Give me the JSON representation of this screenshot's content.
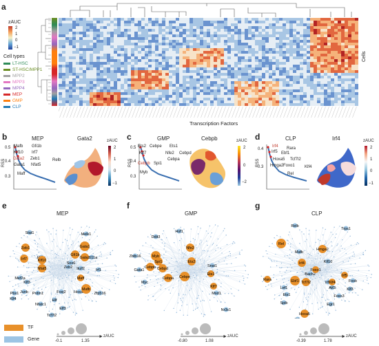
{
  "panel_a": {
    "label": "a",
    "zauc_title": "zAUC",
    "scale_ticks": [
      "2",
      "1",
      "0",
      "−1"
    ],
    "cell_types_title": "Cell types",
    "cell_types": [
      {
        "name": "LT-HSC",
        "color": "#2e8b57"
      },
      {
        "name": "ST-HSC/MPP1",
        "color": "#6b8e23"
      },
      {
        "name": "MPP2",
        "color": "#a0a0a0"
      },
      {
        "name": "MPP3",
        "color": "#e377c2"
      },
      {
        "name": "MPP4",
        "color": "#9467bd"
      },
      {
        "name": "MEP",
        "color": "#d62728"
      },
      {
        "name": "GMP",
        "color": "#ff7f0e"
      },
      {
        "name": "CLP",
        "color": "#1f77b4"
      }
    ],
    "cells_label": "Cells",
    "x_axis_label": "Transcription Factors"
  },
  "panel_b": {
    "label": "b",
    "title": "MEP",
    "tf": "Gata2",
    "zauc": "zAUC",
    "ticks": [
      "2",
      "1",
      "0",
      "−1"
    ],
    "rss_label": "RSS",
    "rss_ticks": [
      "0.5",
      "0.4",
      "0.3"
    ],
    "genes": [
      "Mafb",
      "Gfi1b",
      "Klf10",
      "Irf7",
      "Gata2",
      "Zeb1",
      "Gata1",
      "Nfat5",
      "Relb",
      "Maff"
    ]
  },
  "panel_c": {
    "label": "c",
    "title": "GMP",
    "tf": "Cebpb",
    "zauc": "zAUC",
    "ticks": [
      "2",
      "0",
      "−2"
    ],
    "rss_label": "RSS",
    "rss_ticks": [
      "0.5",
      "0.4",
      "0.3"
    ],
    "genes": [
      "Ets2",
      "Cebpe",
      "Ets1",
      "Klf7",
      "Nfe2",
      "Cebpd",
      "Cebpa",
      "Cebpb",
      "Spi1",
      "Myb"
    ]
  },
  "panel_d": {
    "label": "d",
    "title": "CLP",
    "tf": "Irf4",
    "zauc": "zAUC",
    "ticks": [
      "2",
      "1",
      "0",
      "−1"
    ],
    "rss_label": "RSS",
    "rss_ticks": [
      "0.4",
      "0.3"
    ],
    "genes": [
      "Irf4",
      "Rara",
      "Irf5",
      "Ebf1",
      "Hoxa5",
      "Tcf7l2",
      "Hmga2",
      "Foxo1",
      "Klf4",
      "Rel"
    ]
  },
  "panel_e": {
    "label": "e",
    "title": "MEP",
    "tf_nodes": [
      "Zeb1",
      "Irf7",
      "Gata1",
      "Gfi1b",
      "Gata2",
      "Klf10",
      "Nfat5",
      "Maff",
      "Mafb"
    ],
    "gene_nodes": [
      "Stat1",
      "Melk1",
      "Bcl11a",
      "Sox6",
      "Mef2a",
      "Rara",
      "Klf3",
      "Zeb2",
      "Ikzf2",
      "Irf1",
      "Pbx1",
      "Klf4",
      "Junb",
      "Prdm1",
      "Foxj2",
      "Nfatc1",
      "Hlf",
      "Elf3",
      "Hoxa5",
      "Zfp516",
      "Tcf7l2"
    ]
  },
  "panel_f": {
    "label": "f",
    "title": "GMP",
    "tf_nodes": [
      "Myb",
      "Nfe2",
      "Cebpb",
      "Cebpd",
      "Cebpa",
      "Cebpe",
      "Ets2",
      "Klf7",
      "Ets1",
      "Spi1"
    ],
    "gene_nodes": [
      "Ddit3",
      "Hsf1",
      "Zbtb16",
      "Gata1",
      "Myc",
      "Snai1",
      "Mxd1",
      "Nr3c1"
    ]
  },
  "panel_g": {
    "label": "g",
    "title": "CLP",
    "tf_nodes": [
      "Rel",
      "Irf4",
      "Ebf1",
      "Tcf7l2",
      "Foxo1",
      "Hmga2",
      "Hoxa5",
      "Rara",
      "Irf5",
      "Klf4"
    ],
    "gene_nodes": [
      "Relb",
      "Trps1",
      "Mafb",
      "Klf10",
      "Bach2",
      "Lef1",
      "Ets1",
      "Spib",
      "Irf8",
      "Atf3",
      "Fosb",
      "Klf3",
      "Foxo3",
      "Egr1",
      "Vdr"
    ]
  },
  "network_legend": {
    "tf_label": "TF",
    "gene_label": "Gene",
    "tf_color": "#e8902a",
    "gene_color": "#9cc4e4",
    "e_range": [
      "-0.1",
      "1.35"
    ],
    "f_range": [
      "-0.80",
      "1.08"
    ],
    "g_range": [
      "-0.39",
      "1.78"
    ],
    "zauc": "zAUC"
  }
}
